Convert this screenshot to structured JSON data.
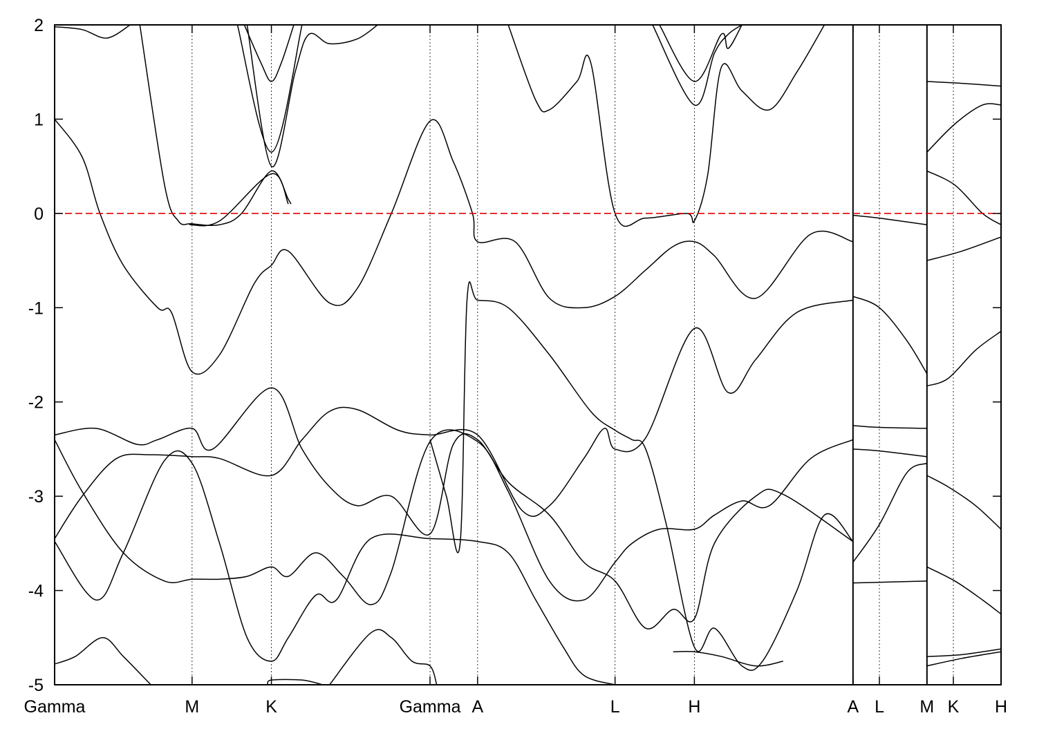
{
  "chart_data": {
    "type": "line",
    "title": "",
    "xlabel": "",
    "ylabel": "",
    "ylim": [
      -5,
      2
    ],
    "y_ticks": [
      "2",
      "1",
      "0",
      "-1",
      "-2",
      "-3",
      "-4",
      "-5"
    ],
    "y_tick_values": [
      2,
      1,
      0,
      -1,
      -2,
      -3,
      -4,
      -5
    ],
    "fermi_level": 0,
    "fermi_color": "#e00000",
    "band_color": "#000000",
    "grid": "dotted vertical lines at high-symmetry points",
    "x_ticks": [
      {
        "label": "Gamma",
        "x": 0.0
      },
      {
        "label": "M",
        "x": 1.0
      },
      {
        "label": "K",
        "x": 1.577
      },
      {
        "label": "Gamma",
        "x": 2.731
      },
      {
        "label": "A",
        "x": 3.077
      },
      {
        "label": "L",
        "x": 4.077
      },
      {
        "label": "H",
        "x": 4.654
      },
      {
        "label": "A",
        "x": 5.808
      },
      {
        "label": "L",
        "x": 6.0
      },
      {
        "label": "M",
        "x": 6.346
      },
      {
        "label": "K",
        "x": 6.538
      },
      {
        "label": "H",
        "x": 6.885
      }
    ],
    "path_breaks": [
      5.808,
      6.346
    ],
    "xlim": [
      0,
      6.885
    ],
    "series": [
      {
        "values": [
          [
            0,
            1.0
          ],
          [
            0.2,
            0.6
          ],
          [
            0.33,
            0.0
          ],
          [
            0.5,
            -0.55
          ],
          [
            0.75,
            -1.0
          ],
          [
            0.85,
            -1.05
          ],
          [
            1.0,
            -1.68
          ],
          [
            1.2,
            -1.5
          ],
          [
            1.45,
            -0.75
          ],
          [
            1.577,
            -0.55
          ],
          [
            1.7,
            -0.4
          ],
          [
            2.0,
            -0.95
          ],
          [
            2.2,
            -0.8
          ],
          [
            2.45,
            0.0
          ],
          [
            2.731,
            0.98
          ],
          [
            2.9,
            0.55
          ],
          [
            3.04,
            0.0
          ],
          [
            3.077,
            -0.3
          ],
          [
            3.35,
            -0.3
          ],
          [
            3.6,
            -0.9
          ],
          [
            3.85,
            -1.0
          ],
          [
            4.077,
            -0.88
          ],
          [
            4.3,
            -0.6
          ],
          [
            4.5,
            -0.35
          ],
          [
            4.654,
            -0.3
          ],
          [
            4.8,
            -0.45
          ],
          [
            5.1,
            -0.9
          ],
          [
            5.5,
            -0.22
          ],
          [
            5.808,
            -0.3
          ]
        ]
      },
      {
        "values": [
          [
            0.62,
            2.0
          ],
          [
            0.8,
            0.3
          ],
          [
            0.9,
            -0.08
          ],
          [
            1.0,
            -0.11
          ],
          [
            1.2,
            -0.12
          ],
          [
            1.36,
            0.0
          ],
          [
            1.577,
            0.45
          ],
          [
            1.7,
            0.15
          ],
          [
            1.72,
            0.1
          ]
        ]
      },
      {
        "values": [
          [
            0.98,
            -0.12
          ],
          [
            1.2,
            -0.08
          ],
          [
            1.577,
            0.42
          ],
          [
            1.7,
            0.1
          ]
        ]
      },
      {
        "values": [
          [
            1.38,
            2.0
          ],
          [
            1.5,
            1.6
          ],
          [
            1.577,
            1.4
          ],
          [
            1.65,
            1.6
          ],
          [
            1.74,
            2.0
          ]
        ]
      },
      {
        "values": [
          [
            1.33,
            2.0
          ],
          [
            1.577,
            0.65
          ],
          [
            1.8,
            2.0
          ]
        ]
      },
      {
        "values": [
          [
            1.4,
            2.0
          ],
          [
            1.577,
            0.5
          ],
          [
            1.75,
            1.5
          ],
          [
            1.85,
            1.9
          ],
          [
            2.0,
            1.8
          ],
          [
            2.2,
            1.85
          ],
          [
            2.35,
            2.0
          ]
        ]
      },
      {
        "values": [
          [
            0.0,
            1.98
          ],
          [
            0.2,
            1.95
          ],
          [
            0.38,
            1.86
          ],
          [
            0.55,
            2.0
          ]
        ]
      },
      {
        "values": [
          [
            3.3,
            2.0
          ],
          [
            3.5,
            1.2
          ],
          [
            3.6,
            1.1
          ],
          [
            3.8,
            1.4
          ],
          [
            3.9,
            1.6
          ],
          [
            4.077,
            0.0
          ],
          [
            4.3,
            -0.05
          ],
          [
            4.6,
            0.0
          ],
          [
            4.654,
            -0.08
          ],
          [
            4.75,
            0.4
          ],
          [
            4.85,
            1.55
          ],
          [
            5.0,
            1.3
          ],
          [
            5.2,
            1.1
          ],
          [
            5.4,
            1.5
          ],
          [
            5.6,
            2.0
          ]
        ]
      },
      {
        "values": [
          [
            4.4,
            2.0
          ],
          [
            4.654,
            1.4
          ],
          [
            4.85,
            1.9
          ],
          [
            4.9,
            1.75
          ],
          [
            5.0,
            2.0
          ]
        ]
      },
      {
        "values": [
          [
            4.35,
            2.0
          ],
          [
            4.654,
            1.15
          ],
          [
            4.8,
            1.7
          ],
          [
            4.9,
            1.9
          ],
          [
            5.0,
            2.0
          ]
        ]
      },
      {
        "values": [
          [
            0,
            -2.35
          ],
          [
            0.3,
            -2.28
          ],
          [
            0.6,
            -2.45
          ],
          [
            0.75,
            -2.4
          ],
          [
            1.0,
            -2.28
          ],
          [
            1.15,
            -2.5
          ],
          [
            1.577,
            -1.85
          ],
          [
            1.8,
            -2.5
          ],
          [
            2.0,
            -2.9
          ],
          [
            2.2,
            -3.1
          ],
          [
            2.45,
            -3.0
          ],
          [
            2.731,
            -3.4
          ],
          [
            2.9,
            -2.45
          ],
          [
            3.077,
            -2.4
          ],
          [
            3.3,
            -2.85
          ],
          [
            3.6,
            -3.2
          ],
          [
            3.85,
            -3.7
          ],
          [
            4.077,
            -3.9
          ],
          [
            4.3,
            -4.4
          ],
          [
            4.5,
            -4.2
          ],
          [
            4.654,
            -4.3
          ],
          [
            4.8,
            -3.5
          ],
          [
            5.1,
            -3.0
          ],
          [
            5.3,
            -2.98
          ],
          [
            5.808,
            -3.48
          ]
        ]
      },
      {
        "values": [
          [
            0,
            -2.4
          ],
          [
            0.2,
            -2.95
          ],
          [
            0.5,
            -3.6
          ],
          [
            0.8,
            -3.9
          ],
          [
            1.0,
            -3.88
          ],
          [
            1.2,
            -3.88
          ],
          [
            1.4,
            -3.85
          ],
          [
            1.577,
            -3.75
          ],
          [
            1.7,
            -3.85
          ],
          [
            1.9,
            -3.6
          ],
          [
            2.1,
            -3.85
          ],
          [
            2.3,
            -4.15
          ],
          [
            2.45,
            -3.8
          ],
          [
            2.731,
            -2.42
          ],
          [
            3.077,
            -2.42
          ],
          [
            3.3,
            -2.95
          ],
          [
            3.6,
            -3.9
          ],
          [
            3.85,
            -4.1
          ],
          [
            4.077,
            -3.7
          ],
          [
            4.2,
            -3.5
          ],
          [
            4.4,
            -3.35
          ],
          [
            4.654,
            -3.35
          ],
          [
            4.8,
            -3.2
          ],
          [
            5.0,
            -3.05
          ],
          [
            5.2,
            -3.1
          ],
          [
            5.5,
            -2.6
          ],
          [
            5.808,
            -2.4
          ]
        ]
      },
      {
        "values": [
          [
            0,
            -3.45
          ],
          [
            0.2,
            -3.0
          ],
          [
            0.45,
            -2.6
          ],
          [
            0.7,
            -2.56
          ],
          [
            1.0,
            -2.58
          ],
          [
            1.2,
            -2.6
          ],
          [
            1.577,
            -2.78
          ],
          [
            1.8,
            -2.4
          ],
          [
            2.0,
            -2.1
          ],
          [
            2.2,
            -2.08
          ],
          [
            2.5,
            -2.3
          ],
          [
            2.731,
            -2.35
          ],
          [
            3.077,
            -2.35
          ],
          [
            3.4,
            -3.15
          ],
          [
            3.6,
            -3.1
          ],
          [
            3.85,
            -2.6
          ],
          [
            4.0,
            -2.28
          ],
          [
            4.077,
            -2.5
          ],
          [
            4.3,
            -2.38
          ],
          [
            4.654,
            -1.22
          ],
          [
            4.9,
            -1.9
          ],
          [
            5.1,
            -1.55
          ],
          [
            5.4,
            -1.05
          ],
          [
            5.808,
            -0.92
          ]
        ]
      },
      {
        "values": [
          [
            0,
            -3.48
          ],
          [
            0.3,
            -4.1
          ],
          [
            0.5,
            -3.6
          ],
          [
            0.8,
            -2.62
          ],
          [
            1.0,
            -2.65
          ],
          [
            1.2,
            -3.5
          ],
          [
            1.4,
            -4.5
          ],
          [
            1.577,
            -4.75
          ],
          [
            1.7,
            -4.5
          ],
          [
            1.9,
            -4.05
          ],
          [
            2.05,
            -4.1
          ],
          [
            2.3,
            -3.45
          ],
          [
            2.731,
            -3.45
          ],
          [
            3.077,
            -3.48
          ],
          [
            3.3,
            -3.6
          ],
          [
            3.5,
            -4.1
          ],
          [
            3.7,
            -4.6
          ],
          [
            3.85,
            -4.9
          ],
          [
            4.077,
            -5.0
          ]
        ]
      },
      {
        "values": [
          [
            2.731,
            -2.4
          ],
          [
            2.85,
            -3.0
          ],
          [
            2.95,
            -3.5
          ],
          [
            3.0,
            -0.92
          ],
          [
            3.077,
            -0.92
          ],
          [
            3.3,
            -1.0
          ],
          [
            3.6,
            -1.5
          ],
          [
            3.9,
            -2.1
          ],
          [
            4.077,
            -2.3
          ],
          [
            4.2,
            -2.4
          ],
          [
            4.3,
            -2.5
          ],
          [
            4.45,
            -3.3
          ],
          [
            4.654,
            -4.6
          ],
          [
            4.8,
            -4.4
          ],
          [
            5.0,
            -4.8
          ],
          [
            5.15,
            -4.75
          ],
          [
            5.4,
            -4.0
          ],
          [
            5.6,
            -3.2
          ],
          [
            5.808,
            -3.48
          ]
        ]
      },
      {
        "values": [
          [
            0,
            -4.78
          ],
          [
            0.15,
            -4.7
          ],
          [
            0.35,
            -4.5
          ],
          [
            0.5,
            -4.7
          ],
          [
            0.7,
            -5.0
          ]
        ]
      },
      {
        "values": [
          [
            2.0,
            -5.0
          ],
          [
            2.3,
            -4.45
          ],
          [
            2.45,
            -4.5
          ],
          [
            2.6,
            -4.75
          ],
          [
            2.731,
            -4.8
          ],
          [
            2.78,
            -5.0
          ]
        ]
      },
      {
        "values": [
          [
            1.55,
            -5.0
          ],
          [
            1.577,
            -4.95
          ],
          [
            1.8,
            -4.95
          ],
          [
            1.95,
            -5.0
          ]
        ]
      },
      {
        "values": [
          [
            4.5,
            -4.65
          ],
          [
            4.654,
            -4.65
          ],
          [
            4.85,
            -4.7
          ],
          [
            5.1,
            -4.8
          ],
          [
            5.3,
            -4.75
          ]
        ]
      },
      {
        "values": [
          [
            5.808,
            -0.02
          ],
          [
            6.0,
            -0.05
          ],
          [
            6.346,
            -0.12
          ]
        ]
      },
      {
        "values": [
          [
            5.808,
            -0.88
          ],
          [
            6.0,
            -1.0
          ],
          [
            6.2,
            -1.35
          ],
          [
            6.346,
            -1.7
          ]
        ]
      },
      {
        "values": [
          [
            5.808,
            -2.25
          ],
          [
            6.0,
            -2.27
          ],
          [
            6.346,
            -2.28
          ]
        ]
      },
      {
        "values": [
          [
            5.808,
            -2.5
          ],
          [
            6.0,
            -2.52
          ],
          [
            6.346,
            -2.58
          ]
        ]
      },
      {
        "values": [
          [
            5.808,
            -3.7
          ],
          [
            6.0,
            -3.3
          ],
          [
            6.2,
            -2.75
          ],
          [
            6.346,
            -2.65
          ]
        ]
      },
      {
        "values": [
          [
            5.808,
            -3.92
          ],
          [
            6.346,
            -3.9
          ]
        ]
      },
      {
        "values": [
          [
            6.346,
            0.65
          ],
          [
            6.55,
            0.95
          ],
          [
            6.75,
            1.15
          ],
          [
            6.885,
            1.15
          ]
        ]
      },
      {
        "values": [
          [
            6.346,
            0.45
          ],
          [
            6.55,
            0.3
          ],
          [
            6.75,
            0.0
          ],
          [
            6.885,
            -0.12
          ]
        ]
      },
      {
        "values": [
          [
            6.346,
            1.4
          ],
          [
            6.6,
            1.38
          ],
          [
            6.885,
            1.35
          ]
        ]
      },
      {
        "values": [
          [
            6.346,
            -0.5
          ],
          [
            6.6,
            -0.4
          ],
          [
            6.885,
            -0.25
          ]
        ]
      },
      {
        "values": [
          [
            6.346,
            -1.83
          ],
          [
            6.5,
            -1.75
          ],
          [
            6.7,
            -1.45
          ],
          [
            6.885,
            -1.25
          ]
        ]
      },
      {
        "values": [
          [
            6.346,
            -2.78
          ],
          [
            6.5,
            -2.9
          ],
          [
            6.7,
            -3.1
          ],
          [
            6.885,
            -3.35
          ]
        ]
      },
      {
        "values": [
          [
            6.346,
            -3.75
          ],
          [
            6.55,
            -3.9
          ],
          [
            6.75,
            -4.1
          ],
          [
            6.885,
            -4.25
          ]
        ]
      },
      {
        "values": [
          [
            6.346,
            -4.7
          ],
          [
            6.6,
            -4.68
          ],
          [
            6.885,
            -4.62
          ]
        ]
      },
      {
        "values": [
          [
            6.346,
            -4.8
          ],
          [
            6.6,
            -4.72
          ],
          [
            6.885,
            -4.65
          ]
        ]
      }
    ]
  }
}
